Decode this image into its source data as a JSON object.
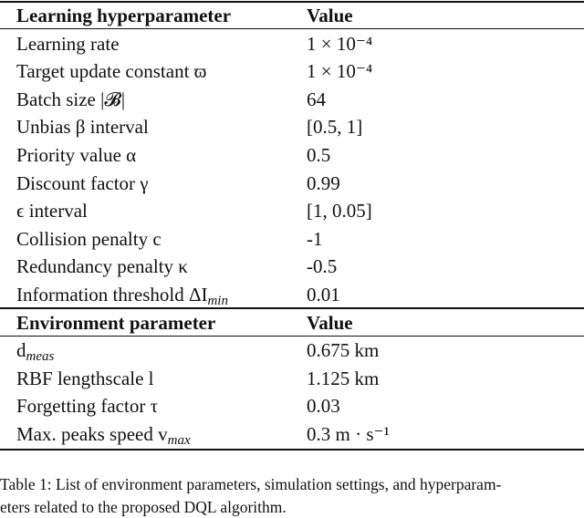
{
  "table": {
    "sections": [
      {
        "header": [
          "Learning hyperparameter",
          "Value"
        ],
        "rows": [
          {
            "label": "Learning rate",
            "value": "1 × 10⁻⁴"
          },
          {
            "label": "Target update constant ϖ",
            "value": "1 × 10⁻⁴"
          },
          {
            "label": "Batch size |𝓑|",
            "value": "64"
          },
          {
            "label": "Unbias β interval",
            "value": "[0.5, 1]"
          },
          {
            "label": "Priority value α",
            "value": "0.5"
          },
          {
            "label": "Discount factor γ",
            "value": "0.99"
          },
          {
            "label": "ϵ interval",
            "value": "[1, 0.05]"
          },
          {
            "label": "Collision penalty c",
            "value": "-1"
          },
          {
            "label": "Redundancy penalty κ",
            "value": "-0.5"
          },
          {
            "label": "Information threshold ΔI",
            "label_sub": "min",
            "value": "0.01"
          }
        ]
      },
      {
        "header": [
          "Environment parameter",
          "Value"
        ],
        "rows": [
          {
            "label": "d",
            "label_sub": "meas",
            "value": "0.675 km"
          },
          {
            "label": "RBF lengthscale l",
            "value": "1.125 km"
          },
          {
            "label": "Forgetting factor τ",
            "value": "0.03"
          },
          {
            "label": "Max. peaks speed v",
            "label_sub": "max",
            "value": "0.3 m · s⁻¹"
          }
        ]
      }
    ]
  },
  "caption": [
    "Table 1: List of environment parameters, simulation settings, and hyperparam-",
    "eters related to the proposed DQL algorithm."
  ]
}
